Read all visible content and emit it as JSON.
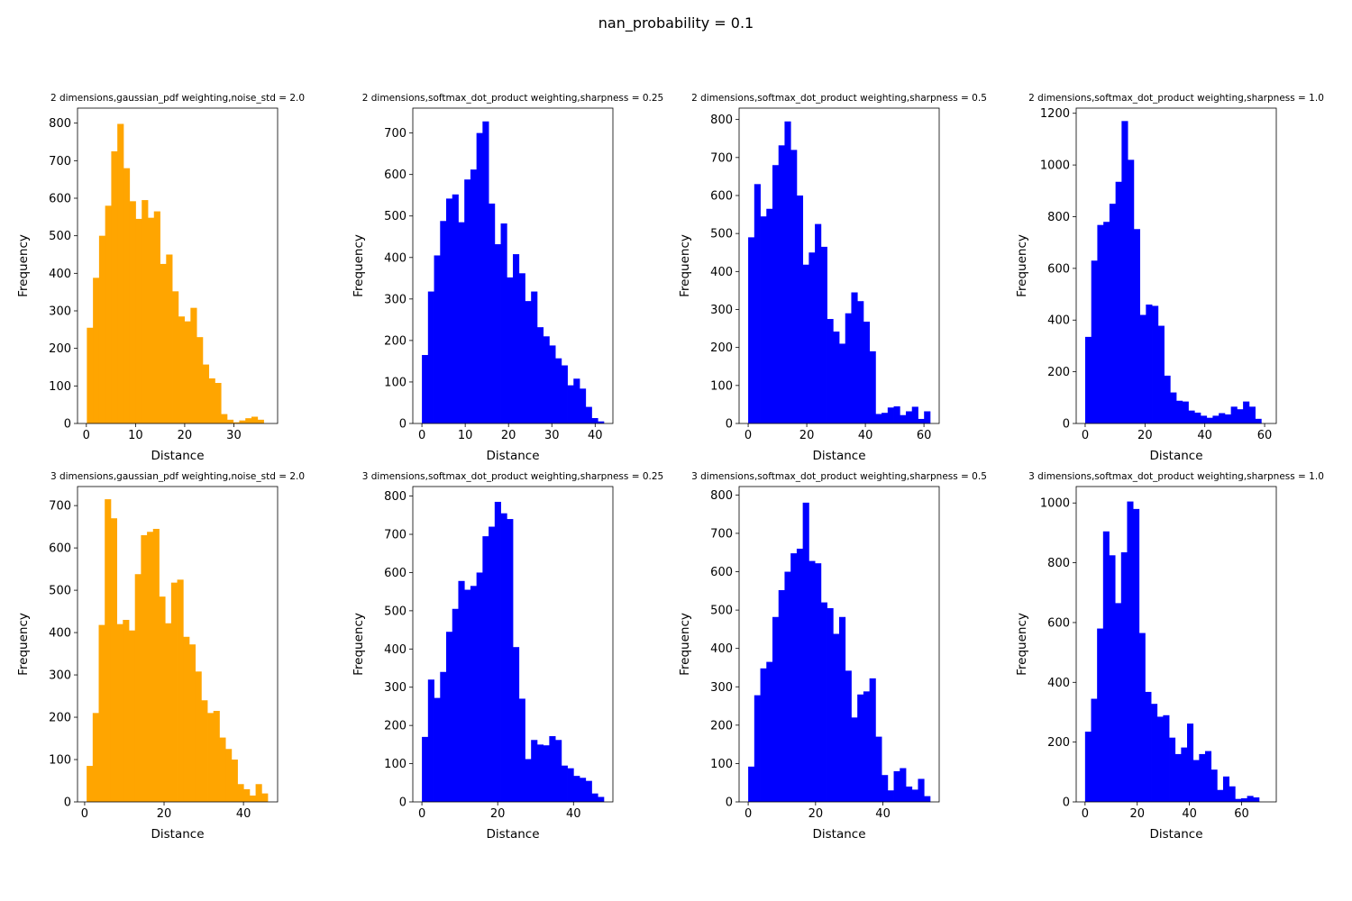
{
  "figure": {
    "suptitle": "nan_probability = 0.1"
  },
  "chart_data": [
    {
      "type": "bar",
      "title": "2 dimensions,gaussian_pdf weighting,noise_std = 2.0",
      "xlabel": "Distance",
      "ylabel": "Frequency",
      "color": "#FFA500",
      "bin_start": 0.1,
      "bin_width": 1.24,
      "values": [
        255,
        388,
        500,
        580,
        725,
        798,
        680,
        592,
        545,
        595,
        548,
        565,
        425,
        450,
        352,
        285,
        272,
        308,
        230,
        157,
        120,
        108,
        25,
        10,
        3,
        8,
        14,
        18,
        10
      ],
      "xlim": [
        -1.8,
        38.9
      ],
      "ylim": [
        0,
        840
      ],
      "xticks": [
        0,
        10,
        20,
        30
      ],
      "yticks": [
        0,
        100,
        200,
        300,
        400,
        500,
        600,
        700,
        800
      ]
    },
    {
      "type": "bar",
      "title": "2 dimensions,softmax_dot_product weighting,sharpness = 0.25",
      "xlabel": "Distance",
      "ylabel": "Frequency",
      "color": "#0000FF",
      "bin_start": 0.0,
      "bin_width": 1.4,
      "values": [
        165,
        318,
        405,
        488,
        542,
        552,
        485,
        588,
        612,
        700,
        728,
        530,
        432,
        482,
        352,
        408,
        362,
        295,
        318,
        232,
        210,
        188,
        157,
        140,
        92,
        108,
        84,
        40,
        13,
        5
      ],
      "xlim": [
        -2.1,
        44.1
      ],
      "ylim": [
        0,
        760
      ],
      "xticks": [
        0,
        10,
        20,
        30,
        40
      ],
      "yticks": [
        0,
        100,
        200,
        300,
        400,
        500,
        600,
        700
      ]
    },
    {
      "type": "bar",
      "title": "2 dimensions,softmax_dot_product weighting,sharpness = 0.5",
      "xlabel": "Distance",
      "ylabel": "Frequency",
      "color": "#0000FF",
      "bin_start": 0.0,
      "bin_width": 2.07,
      "values": [
        490,
        630,
        545,
        565,
        680,
        732,
        795,
        720,
        600,
        418,
        450,
        525,
        465,
        275,
        242,
        210,
        290,
        345,
        322,
        268,
        190,
        25,
        28,
        42,
        45,
        22,
        32,
        44,
        12,
        32
      ],
      "xlim": [
        -3.1,
        65.2
      ],
      "ylim": [
        0,
        830
      ],
      "xticks": [
        0,
        20,
        40,
        60
      ],
      "yticks": [
        0,
        100,
        200,
        300,
        400,
        500,
        600,
        700,
        800
      ]
    },
    {
      "type": "bar",
      "title": "2 dimensions,softmax_dot_product weighting,sharpness = 1.0",
      "xlabel": "Distance",
      "ylabel": "Frequency",
      "color": "#0000FF",
      "bin_start": 0.0,
      "bin_width": 2.03,
      "values": [
        335,
        630,
        768,
        780,
        850,
        935,
        1170,
        1020,
        752,
        420,
        460,
        455,
        378,
        185,
        120,
        88,
        85,
        50,
        42,
        30,
        22,
        30,
        40,
        35,
        65,
        55,
        85,
        65,
        18
      ],
      "xlim": [
        -3.0,
        63.9
      ],
      "ylim": [
        0,
        1220
      ],
      "xticks": [
        0,
        20,
        40,
        60
      ],
      "yticks": [
        0,
        200,
        400,
        600,
        800,
        1000,
        1200
      ]
    },
    {
      "type": "bar",
      "title": "3 dimensions,gaussian_pdf weighting,noise_std = 2.0",
      "xlabel": "Distance",
      "ylabel": "Frequency",
      "color": "#FFA500",
      "bin_start": 0.5,
      "bin_width": 1.52,
      "values": [
        85,
        210,
        418,
        715,
        670,
        420,
        430,
        405,
        538,
        630,
        638,
        645,
        485,
        422,
        518,
        525,
        390,
        372,
        308,
        240,
        210,
        215,
        152,
        125,
        100,
        42,
        30,
        15,
        42,
        20
      ],
      "xlim": [
        -1.8,
        48.6
      ],
      "ylim": [
        0,
        745
      ],
      "xticks": [
        0,
        20,
        40
      ],
      "yticks": [
        0,
        100,
        200,
        300,
        400,
        500,
        600,
        700
      ]
    },
    {
      "type": "bar",
      "title": "3 dimensions,softmax_dot_product weighting,sharpness = 0.25",
      "xlabel": "Distance",
      "ylabel": "Frequency",
      "color": "#0000FF",
      "bin_start": 0.0,
      "bin_width": 1.6,
      "values": [
        170,
        320,
        272,
        340,
        445,
        505,
        578,
        555,
        565,
        600,
        695,
        720,
        785,
        755,
        740,
        405,
        270,
        112,
        162,
        150,
        148,
        172,
        162,
        95,
        88,
        68,
        63,
        55,
        22,
        13
      ],
      "xlim": [
        -2.4,
        50.4
      ],
      "ylim": [
        0,
        825
      ],
      "xticks": [
        0,
        20,
        40
      ],
      "yticks": [
        0,
        100,
        200,
        300,
        400,
        500,
        600,
        700,
        800
      ]
    },
    {
      "type": "bar",
      "title": "3 dimensions,softmax_dot_product weighting,sharpness = 0.5",
      "xlabel": "Distance",
      "ylabel": "Frequency",
      "color": "#0000FF",
      "bin_start": 0.0,
      "bin_width": 1.8,
      "values": [
        92,
        278,
        348,
        365,
        482,
        552,
        600,
        648,
        660,
        780,
        628,
        622,
        520,
        505,
        438,
        482,
        342,
        220,
        280,
        288,
        322,
        170,
        70,
        30,
        80,
        88,
        40,
        32,
        60,
        15
      ],
      "xlim": [
        -2.7,
        56.7
      ],
      "ylim": [
        0,
        822
      ],
      "xticks": [
        0,
        20,
        40
      ],
      "yticks": [
        0,
        100,
        200,
        300,
        400,
        500,
        600,
        700,
        800
      ]
    },
    {
      "type": "bar",
      "title": "3 dimensions,softmax_dot_product weighting,sharpness = 1.0",
      "xlabel": "Distance",
      "ylabel": "Frequency",
      "color": "#0000FF",
      "bin_start": 0.0,
      "bin_width": 2.3,
      "values": [
        235,
        345,
        580,
        905,
        825,
        665,
        835,
        1005,
        980,
        565,
        368,
        328,
        285,
        290,
        215,
        160,
        182,
        262,
        140,
        160,
        170,
        108,
        40,
        85,
        52,
        10,
        12,
        20,
        15
      ],
      "xlim": [
        -3.4,
        73.3
      ],
      "ylim": [
        0,
        1055
      ],
      "xticks": [
        0,
        20,
        40,
        60
      ],
      "yticks": [
        0,
        200,
        400,
        600,
        800,
        1000
      ]
    }
  ]
}
